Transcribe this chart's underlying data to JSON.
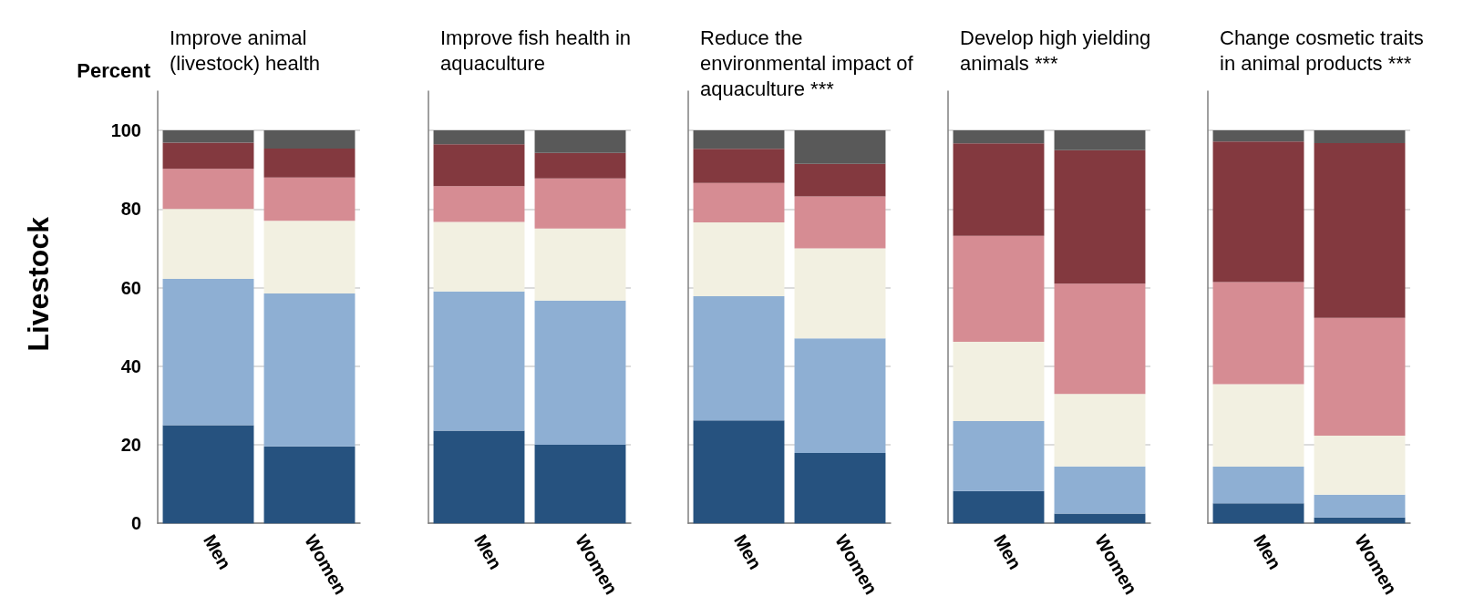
{
  "chart_data": [
    {
      "type": "bar",
      "stacked": true,
      "title": "Improve animal (livestock) health",
      "ylabel": "Percent",
      "annotations": [
        "Livestock"
      ],
      "categories": [
        "Men",
        "Women"
      ],
      "ylim": [
        0,
        110
      ],
      "yticks": [
        0,
        20,
        40,
        60,
        80,
        100
      ],
      "grid": "y",
      "series": [
        {
          "color": "#26527f",
          "values": [
            25.0,
            19.6
          ]
        },
        {
          "color": "#8eafd3",
          "values": [
            37.2,
            38.9
          ]
        },
        {
          "color": "#f2f0e1",
          "values": [
            17.8,
            18.5
          ]
        },
        {
          "color": "#d68c93",
          "values": [
            10.2,
            11.0
          ]
        },
        {
          "color": "#83393f",
          "values": [
            6.7,
            7.4
          ]
        },
        {
          "color": "#595959",
          "values": [
            3.1,
            4.6
          ]
        }
      ]
    },
    {
      "type": "bar",
      "stacked": true,
      "title": "Improve fish health in aquaculture",
      "categories": [
        "Men",
        "Women"
      ],
      "ylim": [
        0,
        110
      ],
      "yticks": [
        0,
        20,
        40,
        60,
        80,
        100
      ],
      "grid": "y",
      "tick_labels": "x",
      "series": [
        {
          "color": "#26527f",
          "values": [
            23.6,
            20.0
          ]
        },
        {
          "color": "#8eafd3",
          "values": [
            35.4,
            36.7
          ]
        },
        {
          "color": "#f2f0e1",
          "values": [
            17.7,
            18.3
          ]
        },
        {
          "color": "#d68c93",
          "values": [
            9.1,
            12.8
          ]
        },
        {
          "color": "#83393f",
          "values": [
            10.7,
            6.5
          ]
        },
        {
          "color": "#595959",
          "values": [
            3.5,
            5.7
          ]
        }
      ]
    },
    {
      "type": "bar",
      "stacked": true,
      "title": "Reduce the environmental impact of aquaculture ***",
      "categories": [
        "Men",
        "Women"
      ],
      "ylim": [
        0,
        110
      ],
      "yticks": [
        0,
        20,
        40,
        60,
        80,
        100
      ],
      "grid": "y",
      "tick_labels": "x",
      "series": [
        {
          "color": "#26527f",
          "values": [
            26.2,
            17.9
          ]
        },
        {
          "color": "#8eafd3",
          "values": [
            31.6,
            29.2
          ]
        },
        {
          "color": "#f2f0e1",
          "values": [
            18.8,
            22.9
          ]
        },
        {
          "color": "#d68c93",
          "values": [
            10.0,
            13.2
          ]
        },
        {
          "color": "#83393f",
          "values": [
            8.7,
            8.3
          ]
        },
        {
          "color": "#595959",
          "values": [
            4.7,
            8.5
          ]
        }
      ]
    },
    {
      "type": "bar",
      "stacked": true,
      "title": "Develop high yielding animals ***",
      "categories": [
        "Men",
        "Women"
      ],
      "ylim": [
        0,
        110
      ],
      "yticks": [
        0,
        20,
        40,
        60,
        80,
        100
      ],
      "grid": "y",
      "tick_labels": "x",
      "series": [
        {
          "color": "#26527f",
          "values": [
            8.2,
            2.5
          ]
        },
        {
          "color": "#8eafd3",
          "values": [
            17.8,
            12.0
          ]
        },
        {
          "color": "#f2f0e1",
          "values": [
            20.2,
            18.4
          ]
        },
        {
          "color": "#d68c93",
          "values": [
            27.0,
            28.1
          ]
        },
        {
          "color": "#83393f",
          "values": [
            23.5,
            34.0
          ]
        },
        {
          "color": "#595959",
          "values": [
            3.3,
            5.0
          ]
        }
      ]
    },
    {
      "type": "bar",
      "stacked": true,
      "title": "Change cosmetic traits in animal products ***",
      "categories": [
        "Men",
        "Women"
      ],
      "ylim": [
        0,
        110
      ],
      "yticks": [
        0,
        20,
        40,
        60,
        80,
        100
      ],
      "grid": "y",
      "tick_labels": "x",
      "series": [
        {
          "color": "#26527f",
          "values": [
            5.1,
            1.5
          ]
        },
        {
          "color": "#8eafd3",
          "values": [
            9.3,
            5.8
          ]
        },
        {
          "color": "#f2f0e1",
          "values": [
            21.0,
            15.0
          ]
        },
        {
          "color": "#d68c93",
          "values": [
            26.0,
            30.0
          ]
        },
        {
          "color": "#83393f",
          "values": [
            35.8,
            44.5
          ]
        },
        {
          "color": "#595959",
          "values": [
            2.8,
            3.2
          ]
        }
      ]
    }
  ]
}
